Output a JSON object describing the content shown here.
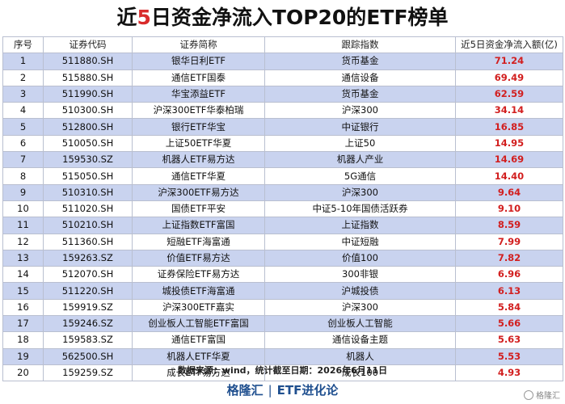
{
  "title": {
    "prefix": "近",
    "highlight": "5",
    "suffix": "日资金净流入TOP20的ETF榜单"
  },
  "table": {
    "headers": [
      "序号",
      "证券代码",
      "证券简称",
      "跟踪指数",
      "近5日资金净流入额(亿)"
    ],
    "rows": [
      [
        "1",
        "511880.SH",
        "银华日利ETF",
        "货币基金",
        "71.24"
      ],
      [
        "2",
        "515880.SH",
        "通信ETF国泰",
        "通信设备",
        "69.49"
      ],
      [
        "3",
        "511990.SH",
        "华宝添益ETF",
        "货币基金",
        "62.59"
      ],
      [
        "4",
        "510300.SH",
        "沪深300ETF华泰柏瑞",
        "沪深300",
        "34.14"
      ],
      [
        "5",
        "512800.SH",
        "银行ETF华宝",
        "中证银行",
        "16.85"
      ],
      [
        "6",
        "510050.SH",
        "上证50ETF华夏",
        "上证50",
        "14.95"
      ],
      [
        "7",
        "159530.SZ",
        "机器人ETF易方达",
        "机器人产业",
        "14.69"
      ],
      [
        "8",
        "515050.SH",
        "通信ETF华夏",
        "5G通信",
        "14.40"
      ],
      [
        "9",
        "510310.SH",
        "沪深300ETF易方达",
        "沪深300",
        "9.64"
      ],
      [
        "10",
        "511020.SH",
        "国债ETF平安",
        "中证5-10年国债活跃券",
        "9.10"
      ],
      [
        "11",
        "510210.SH",
        "上证指数ETF富国",
        "上证指数",
        "8.59"
      ],
      [
        "12",
        "511360.SH",
        "短融ETF海富通",
        "中证短融",
        "7.99"
      ],
      [
        "13",
        "159263.SZ",
        "价值ETF易方达",
        "价值100",
        "7.82"
      ],
      [
        "14",
        "512070.SH",
        "证券保险ETF易方达",
        "300非银",
        "6.96"
      ],
      [
        "15",
        "511220.SH",
        "城投债ETF海富通",
        "沪城投债",
        "6.13"
      ],
      [
        "16",
        "159919.SZ",
        "沪深300ETF嘉实",
        "沪深300",
        "5.84"
      ],
      [
        "17",
        "159246.SZ",
        "创业板人工智能ETF富国",
        "创业板人工智能",
        "5.66"
      ],
      [
        "18",
        "159583.SZ",
        "通信ETF富国",
        "通信设备主题",
        "5.63"
      ],
      [
        "19",
        "562500.SH",
        "机器人ETF华夏",
        "机器人",
        "5.53"
      ],
      [
        "20",
        "159259.SZ",
        "成长ETF易方达",
        "成长100",
        "4.93"
      ]
    ]
  },
  "source": "数据来源：wind，统计截至日期：2026年6月11日",
  "footer": {
    "brand": "格隆汇",
    "separator": "|",
    "column": "ETF进化论"
  },
  "watermark": "格隆汇"
}
